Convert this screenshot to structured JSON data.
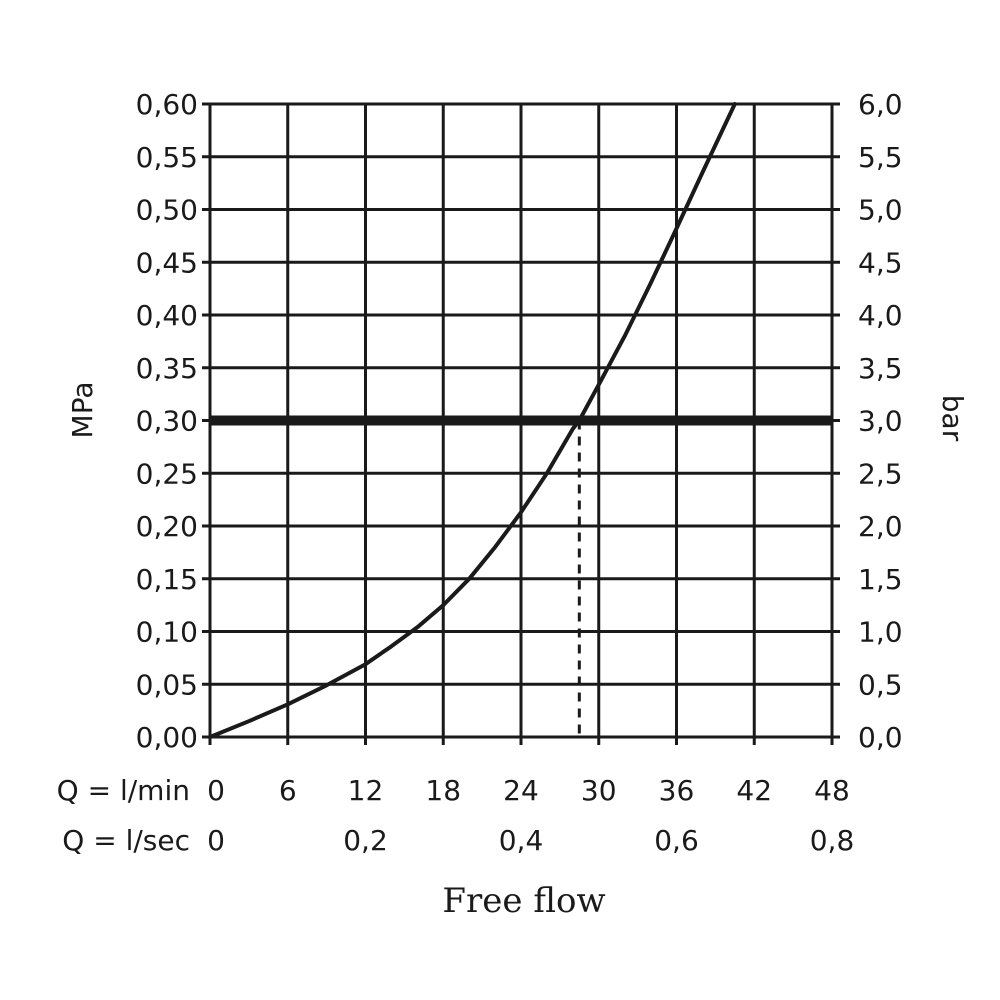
{
  "chart_data": {
    "type": "line",
    "title": "Free flow",
    "xlabel_rows": [
      {
        "label": "Q = l/min",
        "ticks": [
          "0",
          "6",
          "12",
          "18",
          "24",
          "30",
          "36",
          "42",
          "48"
        ],
        "values": [
          0,
          6,
          12,
          18,
          24,
          30,
          36,
          42,
          48
        ]
      },
      {
        "label": "Q = l/sec",
        "ticks": [
          "0",
          "0,2",
          "0,4",
          "0,6",
          "0,8"
        ],
        "values": [
          0,
          12,
          24,
          36,
          48
        ]
      }
    ],
    "xlim": [
      0,
      48
    ],
    "ylabel_left": "MPa",
    "ylabel_right": "bar",
    "ylim": [
      0,
      0.6
    ],
    "yticks_left": [
      "0,00",
      "0,05",
      "0,10",
      "0,15",
      "0,20",
      "0,25",
      "0,30",
      "0,35",
      "0,40",
      "0,45",
      "0,50",
      "0,55",
      "0,60"
    ],
    "yticks_right": [
      "0,0",
      "0,5",
      "1,0",
      "1,5",
      "2,0",
      "2,5",
      "3,0",
      "3,5",
      "4,0",
      "4,5",
      "5,0",
      "5,5",
      "6,0"
    ],
    "ytick_values": [
      0,
      0.05,
      0.1,
      0.15,
      0.2,
      0.25,
      0.3,
      0.35,
      0.4,
      0.45,
      0.5,
      0.55,
      0.6
    ],
    "grid": true,
    "series": [
      {
        "x": [
          0,
          3,
          6,
          9,
          12,
          14,
          16,
          18,
          20,
          22,
          24,
          26,
          28,
          28.5,
          30,
          32,
          34,
          36,
          38,
          40.5
        ],
        "y": [
          0,
          0.015,
          0.031,
          0.049,
          0.069,
          0.086,
          0.104,
          0.125,
          0.15,
          0.18,
          0.213,
          0.25,
          0.292,
          0.3,
          0.334,
          0.38,
          0.43,
          0.482,
          0.535,
          0.6
        ]
      }
    ],
    "reference_line": {
      "y": 0.3
    },
    "drop_line": {
      "x": 28.5,
      "y": 0.3
    }
  }
}
